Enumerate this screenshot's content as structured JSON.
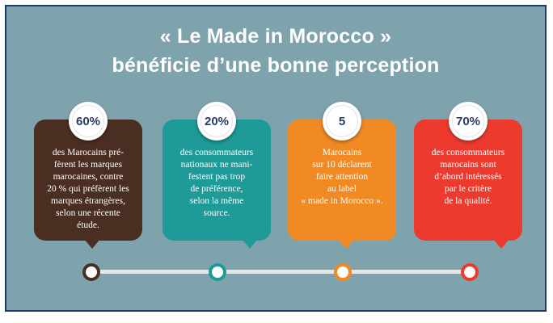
{
  "title": {
    "line1": "« Le Made in Morocco »",
    "line2": "bénéficie d’une bonne perception"
  },
  "cards": [
    {
      "stat": "60%",
      "text": "des Marocains pré-\nfèrent les marques\nmarocaines, contre\n20 % qui préfèrent les\nmarques étrangères,\nselon une récente\nétude.",
      "color": "#4a2e22"
    },
    {
      "stat": "20%",
      "text": "des consommateurs\nnationaux ne mani-\nfestent pas trop\nde préférence,\nselon la même\nsource.",
      "color": "#1e9a98"
    },
    {
      "stat": "5",
      "text": "Marocains\nsur 10 déclarent\nfaire attention\nau label\n« made in Morocco ».",
      "color": "#f18a23"
    },
    {
      "stat": "70%",
      "text": "des consommateurs\nmarocains sont\nd’abord intéressés\npar le critère\nde la qualité.",
      "color": "#ec3b2e"
    }
  ]
}
